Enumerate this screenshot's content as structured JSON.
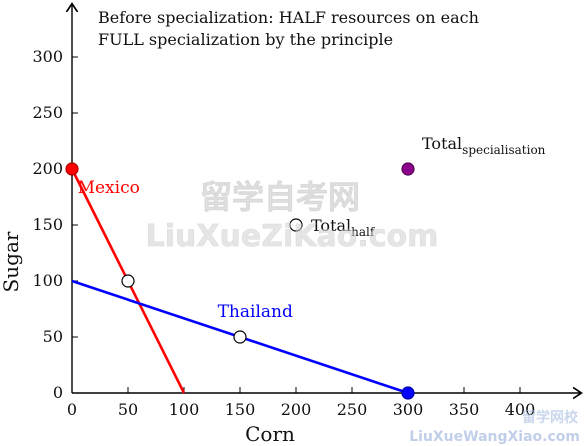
{
  "chart_data": {
    "type": "line",
    "title": "",
    "notes": [
      "Before specialization: HALF resources on each",
      "FULL specialization by the principle"
    ],
    "xlabel": "Corn",
    "ylabel": "Sugar",
    "xlim": [
      0,
      450
    ],
    "ylim": [
      0,
      340
    ],
    "x_ticks": [
      0,
      50,
      100,
      150,
      200,
      250,
      300,
      350,
      400
    ],
    "y_ticks": [
      0,
      50,
      100,
      150,
      200,
      250,
      300
    ],
    "grid": false,
    "series": [
      {
        "name": "Mexico",
        "color": "#ff0000",
        "points": [
          [
            0,
            200
          ],
          [
            100,
            0
          ]
        ]
      },
      {
        "name": "Thailand",
        "color": "#0000ff",
        "points": [
          [
            0,
            100
          ],
          [
            300,
            0
          ]
        ]
      }
    ],
    "markers": [
      {
        "x": 0,
        "y": 200,
        "fill": "#ff0000",
        "stroke": "#aa0000"
      },
      {
        "x": 300,
        "y": 0,
        "fill": "#0000ff",
        "stroke": "#0000aa"
      },
      {
        "x": 300,
        "y": 200,
        "fill": "#8b008b",
        "stroke": "#550055"
      },
      {
        "x": 50,
        "y": 100,
        "fill": "#ffffff",
        "stroke": "#000000"
      },
      {
        "x": 150,
        "y": 50,
        "fill": "#ffffff",
        "stroke": "#000000"
      },
      {
        "x": 200,
        "y": 150,
        "fill": "#ffffff",
        "stroke": "#000000"
      }
    ],
    "annotations": [
      {
        "base": "Total",
        "sub": "half",
        "x": 200,
        "y": 150,
        "anchor": "right"
      },
      {
        "base": "Total",
        "sub": "specialisation",
        "x": 300,
        "y": 200,
        "anchor": "above-right"
      }
    ],
    "series_label_positions": {
      "Mexico": {
        "x": 5,
        "y": 184
      },
      "Thailand": {
        "x": 130,
        "y": 73
      }
    }
  },
  "watermark": {
    "cn_main": "留学自考网",
    "en_main": "LiuXueZiKao.com",
    "cn_corner": "留学网校",
    "en_corner": "LiuXueWangXiao.com"
  }
}
